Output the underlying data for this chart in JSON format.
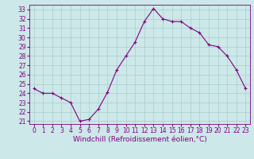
{
  "x": [
    0,
    1,
    2,
    3,
    4,
    5,
    6,
    7,
    8,
    9,
    10,
    11,
    12,
    13,
    14,
    15,
    16,
    17,
    18,
    19,
    20,
    21,
    22,
    23
  ],
  "y": [
    24.5,
    24.0,
    24.0,
    23.5,
    23.0,
    21.0,
    21.2,
    22.3,
    24.1,
    26.5,
    28.0,
    29.5,
    31.7,
    33.1,
    32.0,
    31.7,
    31.7,
    31.0,
    30.5,
    29.2,
    29.0,
    28.0,
    26.5,
    24.5
  ],
  "line_color": "#800080",
  "marker": "+",
  "marker_size": 3,
  "linewidth": 0.8,
  "xlabel": "Windchill (Refroidissement éolien,°C)",
  "xlim": [
    -0.5,
    23.5
  ],
  "ylim": [
    20.7,
    33.5
  ],
  "yticks": [
    21,
    22,
    23,
    24,
    25,
    26,
    27,
    28,
    29,
    30,
    31,
    32,
    33
  ],
  "xticks": [
    0,
    1,
    2,
    3,
    4,
    5,
    6,
    7,
    8,
    9,
    10,
    11,
    12,
    13,
    14,
    15,
    16,
    17,
    18,
    19,
    20,
    21,
    22,
    23
  ],
  "grid_color": "#aacccc",
  "bg_color": "#cce8e8",
  "tick_color": "#800080",
  "tick_fontsize": 5.5,
  "xlabel_fontsize": 6.5,
  "xlabel_color": "#800080"
}
